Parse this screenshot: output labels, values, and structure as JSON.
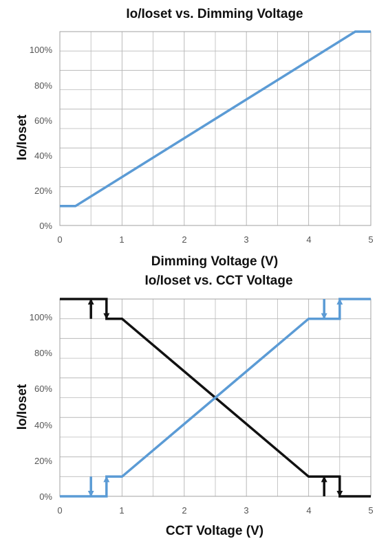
{
  "chart_data": [
    {
      "type": "line",
      "title": "Io/Ioset vs. Dimming Voltage",
      "xlabel": "Dimming Voltage (V)",
      "ylabel": "Io/Ioset",
      "xlim": [
        0,
        5
      ],
      "ylim": [
        0,
        100
      ],
      "x_ticks": [
        "0",
        "1",
        "2",
        "3",
        "4",
        "5"
      ],
      "y_ticks": [
        "0%",
        "20%",
        "40%",
        "60%",
        "80%",
        "100%"
      ],
      "grid": true,
      "legend": "none",
      "series": [
        {
          "color": "#5b9bd5",
          "points": [
            [
              0,
              10
            ],
            [
              0.25,
              10
            ],
            [
              4.75,
              100
            ],
            [
              5,
              100
            ]
          ]
        }
      ]
    },
    {
      "type": "line",
      "title": "Io/Ioset vs. CCT Voltage",
      "xlabel": "CCT Voltage (V)",
      "ylabel": "Io/Ioset",
      "xlim": [
        0,
        5
      ],
      "ylim": [
        0,
        100
      ],
      "x_ticks": [
        "0",
        "1",
        "2",
        "3",
        "4",
        "5"
      ],
      "y_ticks": [
        "0%",
        "20%",
        "40%",
        "60%",
        "80%",
        "100%"
      ],
      "grid": true,
      "legend": "none",
      "series": [
        {
          "color": "#111111",
          "points": [
            [
              0,
              100
            ],
            [
              0.75,
              100
            ],
            [
              0.75,
              90
            ],
            [
              1,
              90
            ],
            [
              4,
              10
            ],
            [
              4.5,
              10
            ],
            [
              4.5,
              0
            ],
            [
              5,
              0
            ]
          ],
          "loop_segments": [
            [
              0.5,
              90,
              0.5,
              100
            ],
            [
              4.25,
              0,
              4.25,
              10
            ]
          ],
          "arrows": [
            {
              "x": 0.5,
              "from": 90,
              "to": 100
            },
            {
              "x": 0.75,
              "from": 100,
              "to": 90
            },
            {
              "x": 4.25,
              "from": 0,
              "to": 10
            },
            {
              "x": 4.5,
              "from": 10,
              "to": 0
            }
          ]
        },
        {
          "color": "#5b9bd5",
          "points": [
            [
              0,
              0
            ],
            [
              0.75,
              0
            ],
            [
              0.75,
              10
            ],
            [
              1,
              10
            ],
            [
              4,
              90
            ],
            [
              4.5,
              90
            ],
            [
              4.5,
              100
            ],
            [
              5,
              100
            ]
          ],
          "loop_segments": [
            [
              0.5,
              0,
              0.5,
              10
            ],
            [
              4.25,
              90,
              4.25,
              100
            ]
          ],
          "arrows": [
            {
              "x": 0.5,
              "from": 10,
              "to": 0
            },
            {
              "x": 0.75,
              "from": 0,
              "to": 10
            },
            {
              "x": 4.25,
              "from": 100,
              "to": 90
            },
            {
              "x": 4.5,
              "from": 90,
              "to": 100
            }
          ]
        }
      ]
    }
  ]
}
